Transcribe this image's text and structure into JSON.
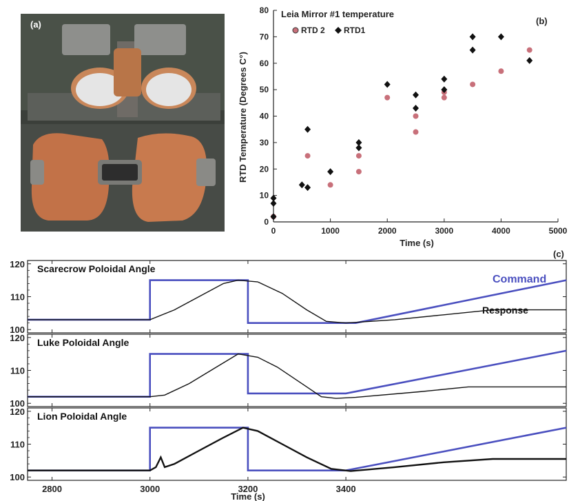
{
  "panels": {
    "a_label": "(a)",
    "b_label": "(b)",
    "c_label": "(c)"
  },
  "chart_data": [
    {
      "type": "scatter",
      "title": "Leia Mirror #1 temperature",
      "xlabel": "Time (s)",
      "ylabel": "RTD  Temperature (Degrees C°)",
      "xlim": [
        0,
        5000
      ],
      "ylim": [
        0,
        80
      ],
      "xticks": [
        0,
        1000,
        2000,
        3000,
        4000,
        5000
      ],
      "yticks": [
        0,
        10,
        20,
        30,
        40,
        50,
        60,
        70,
        80
      ],
      "legend": "top-left",
      "series": [
        {
          "name": "RTD 2",
          "color": "#c8707a",
          "marker": "circle",
          "points": [
            [
              0,
              2
            ],
            [
              600,
              25
            ],
            [
              1000,
              14
            ],
            [
              1500,
              25
            ],
            [
              1500,
              19
            ],
            [
              2000,
              47
            ],
            [
              2500,
              40
            ],
            [
              2500,
              34
            ],
            [
              3000,
              49
            ],
            [
              3000,
              47
            ],
            [
              3500,
              52
            ],
            [
              4000,
              57
            ],
            [
              4500,
              65
            ]
          ]
        },
        {
          "name": "RTD1",
          "color": "#111111",
          "marker": "diamond",
          "points": [
            [
              0,
              9
            ],
            [
              0,
              7
            ],
            [
              0,
              2
            ],
            [
              500,
              14
            ],
            [
              600,
              35
            ],
            [
              600,
              13
            ],
            [
              1000,
              19
            ],
            [
              1500,
              30
            ],
            [
              1500,
              28
            ],
            [
              2000,
              52
            ],
            [
              2500,
              48
            ],
            [
              2500,
              43
            ],
            [
              3000,
              54
            ],
            [
              3000,
              50
            ],
            [
              3500,
              70
            ],
            [
              3500,
              65
            ],
            [
              4000,
              70
            ],
            [
              4500,
              61
            ]
          ]
        }
      ]
    },
    {
      "type": "line",
      "xlabel": "Time (s)",
      "xlim": [
        2750,
        3850
      ],
      "xticks": [
        2800,
        3000,
        3200,
        3400
      ],
      "ylim": [
        99,
        121
      ],
      "yticks": [
        100,
        110,
        120
      ],
      "command_label": "Command",
      "response_label": "Response",
      "command_color": "#4a4fbf",
      "response_color": "#111111",
      "subplots": [
        {
          "title": "Scarecrow Poloidal Angle",
          "command": [
            [
              2750,
              103
            ],
            [
              3000,
              103
            ],
            [
              3000,
              115
            ],
            [
              3200,
              115
            ],
            [
              3200,
              102
            ],
            [
              3420,
              102
            ],
            [
              3850,
              115
            ]
          ],
          "response": [
            [
              2750,
              103
            ],
            [
              3000,
              103
            ],
            [
              3050,
              106
            ],
            [
              3100,
              110
            ],
            [
              3150,
              114
            ],
            [
              3180,
              115
            ],
            [
              3220,
              114.5
            ],
            [
              3270,
              111
            ],
            [
              3320,
              106
            ],
            [
              3360,
              102.5
            ],
            [
              3400,
              102
            ],
            [
              3500,
              103
            ],
            [
              3600,
              104.5
            ],
            [
              3700,
              106
            ],
            [
              3850,
              106
            ]
          ]
        },
        {
          "title": "Luke Poloidal Angle",
          "command": [
            [
              2750,
              102
            ],
            [
              3000,
              102
            ],
            [
              3000,
              115
            ],
            [
              3200,
              115
            ],
            [
              3200,
              103
            ],
            [
              3400,
              103
            ],
            [
              3850,
              116
            ]
          ],
          "response": [
            [
              2750,
              102
            ],
            [
              3000,
              102
            ],
            [
              3030,
              102.5
            ],
            [
              3080,
              106
            ],
            [
              3130,
              110.5
            ],
            [
              3180,
              115
            ],
            [
              3220,
              114
            ],
            [
              3260,
              111
            ],
            [
              3310,
              106
            ],
            [
              3350,
              102
            ],
            [
              3380,
              101.5
            ],
            [
              3420,
              101.8
            ],
            [
              3550,
              103.5
            ],
            [
              3650,
              105
            ],
            [
              3850,
              105
            ]
          ]
        },
        {
          "title": "Lion Poloidal Angle",
          "command": [
            [
              2750,
              102
            ],
            [
              3000,
              102
            ],
            [
              3000,
              115
            ],
            [
              3200,
              115
            ],
            [
              3200,
              102
            ],
            [
              3400,
              102
            ],
            [
              3850,
              115
            ]
          ],
          "response": [
            [
              2750,
              102
            ],
            [
              3000,
              102
            ],
            [
              3012,
              103
            ],
            [
              3022,
              106
            ],
            [
              3030,
              103
            ],
            [
              3050,
              104
            ],
            [
              3100,
              108
            ],
            [
              3150,
              112
            ],
            [
              3190,
              115
            ],
            [
              3220,
              114
            ],
            [
              3270,
              110
            ],
            [
              3320,
              106
            ],
            [
              3370,
              102.5
            ],
            [
              3410,
              101.8
            ],
            [
              3500,
              103
            ],
            [
              3600,
              104.5
            ],
            [
              3700,
              105.5
            ],
            [
              3850,
              105.5
            ]
          ]
        }
      ]
    }
  ]
}
